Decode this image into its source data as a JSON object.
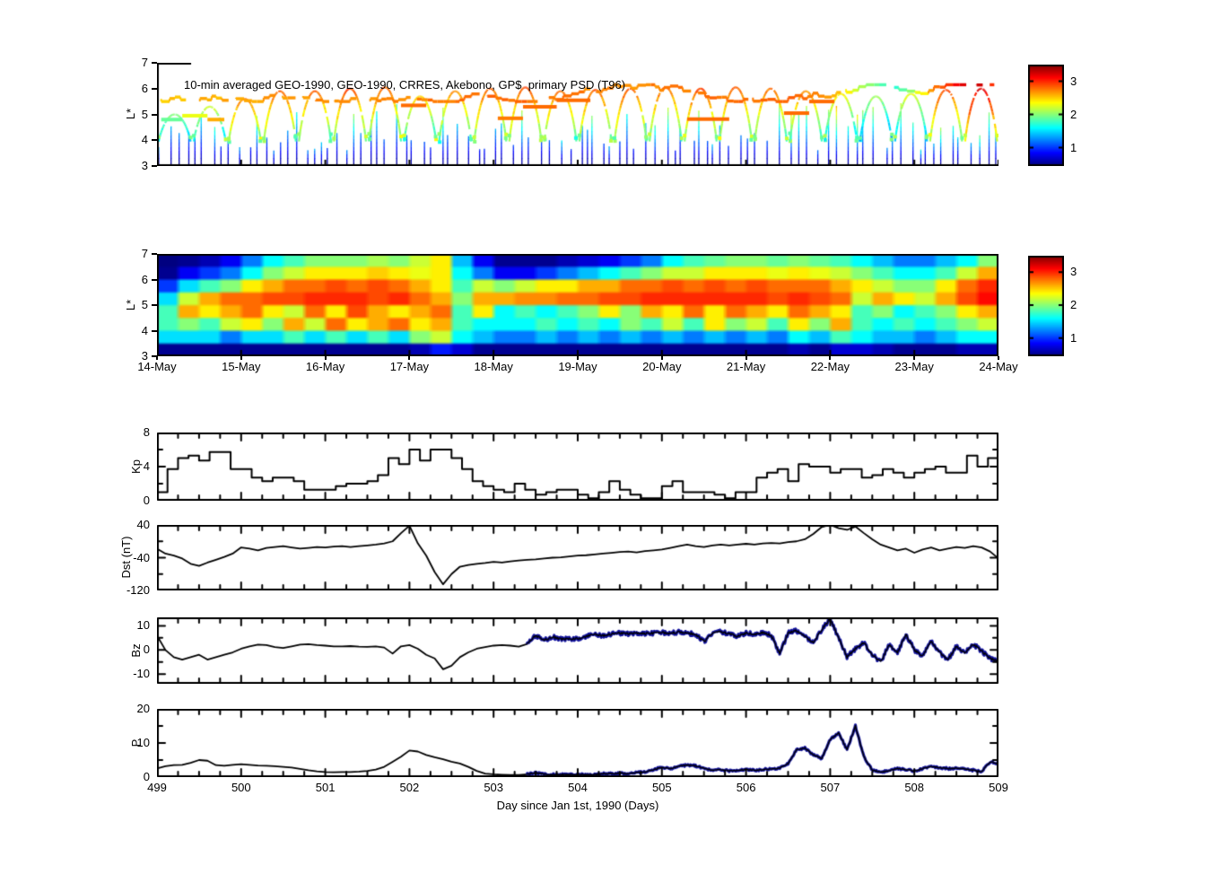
{
  "figure": {
    "background": "#ffffff"
  },
  "colors": {
    "line": "#000000",
    "overlay_blue": "#1414A0",
    "axis": "#000000"
  },
  "colormap": {
    "name": "jet",
    "vmin": 0.45,
    "vmax": 3.5,
    "ticks": [
      1,
      2,
      3
    ]
  },
  "xaxis": {
    "label": "Day since Jan 1st, 1990 (Days)",
    "xlim": [
      499,
      509
    ],
    "ticks": [
      499,
      500,
      501,
      502,
      503,
      504,
      505,
      506,
      507,
      508,
      509
    ],
    "date_ticks": [
      "14-May",
      "15-May",
      "16-May",
      "17-May",
      "18-May",
      "19-May",
      "20-May",
      "21-May",
      "22-May",
      "23-May",
      "24-May"
    ]
  },
  "chart_data": {
    "psd_scatter": {
      "type": "scatter-spectrogram",
      "title": "10-min averaged GEO-1990, GEO-1990, CRRES, Akebono, GP$  primary PSD (T96)",
      "ylabel": "L*",
      "ylim": [
        3,
        7
      ],
      "yticks": [
        3,
        4,
        5,
        6,
        7
      ],
      "seed": 1337,
      "orbits": {
        "first_apogee": 499.21,
        "period": 0.4167,
        "half_width": 0.19,
        "l_bottom": 3.95,
        "apogee_L": [
          5.0,
          5.3,
          5.6,
          5.9,
          5.9,
          6.0,
          6.05,
          5.7,
          5.9,
          6.0,
          6.05,
          5.9,
          5.95,
          6.0,
          6.05,
          6.0,
          6.05,
          6.0,
          5.9,
          5.8,
          5.7,
          5.8,
          5.95,
          6.0
        ],
        "apogee_value": [
          2.0,
          2.2,
          2.75,
          2.85,
          2.8,
          2.9,
          2.85,
          2.5,
          2.7,
          2.85,
          2.9,
          2.8,
          2.85,
          2.9,
          2.85,
          2.9,
          2.85,
          2.8,
          2.7,
          2.4,
          2.1,
          2.3,
          2.9,
          3.2
        ]
      },
      "geo": {
        "l_range": [
          5.5,
          6.15
        ],
        "value_profile": [
          [
            499.0,
            2.5
          ],
          [
            499.8,
            2.6
          ],
          [
            501.0,
            2.7
          ],
          [
            502.3,
            2.75
          ],
          [
            503.2,
            2.8
          ],
          [
            504.5,
            2.7
          ],
          [
            505.5,
            2.78
          ],
          [
            506.6,
            2.82
          ],
          [
            507.1,
            2.5
          ],
          [
            507.45,
            2.0
          ],
          [
            507.75,
            1.7
          ],
          [
            508.05,
            2.4
          ],
          [
            508.3,
            2.85
          ],
          [
            508.55,
            3.25
          ],
          [
            508.75,
            3.3
          ],
          [
            508.95,
            2.8
          ]
        ]
      },
      "bars": [
        [
          499.05,
          499.3,
          4.8,
          1.9
        ],
        [
          499.3,
          499.6,
          4.95,
          2.3
        ],
        [
          499.6,
          499.8,
          4.8,
          2.6
        ],
        [
          501.9,
          502.2,
          5.35,
          2.8
        ],
        [
          503.05,
          503.35,
          4.85,
          2.75
        ],
        [
          503.35,
          503.75,
          5.3,
          2.8
        ],
        [
          503.75,
          504.15,
          5.55,
          2.8
        ],
        [
          505.3,
          505.8,
          4.82,
          2.8
        ],
        [
          506.45,
          506.75,
          5.05,
          2.8
        ],
        [
          506.75,
          507.05,
          5.5,
          2.8
        ]
      ],
      "spikes": {
        "t_start": 499.02,
        "t_end": 508.97,
        "gap_min": 0.05,
        "gap_rand": 0.12,
        "l_top_min": 3.6,
        "l_top_rand": 1.9
      }
    },
    "psd_map": {
      "type": "heatmap",
      "ylabel": "L*",
      "ylim": [
        3,
        7
      ],
      "yticks": [
        3,
        4,
        5,
        6,
        7
      ],
      "grid": {
        "cols": 40,
        "rows": 8,
        "l_edges": [
          3,
          7
        ],
        "columns": [
          [
            0.5,
            1.5,
            1.8,
            1.8,
            1.5,
            1.0,
            0.5,
            0.45
          ],
          [
            0.5,
            1.5,
            2.0,
            2.6,
            2.2,
            1.5,
            0.8,
            0.5
          ],
          [
            0.5,
            1.5,
            1.8,
            2.4,
            2.6,
            1.8,
            1.0,
            0.6
          ],
          [
            0.5,
            1.2,
            2.2,
            2.6,
            2.8,
            2.0,
            1.2,
            0.8
          ],
          [
            0.5,
            1.5,
            2.4,
            2.8,
            2.8,
            2.4,
            1.6,
            1.2
          ],
          [
            0.5,
            1.5,
            2.0,
            2.4,
            2.9,
            2.6,
            2.0,
            1.6
          ],
          [
            0.5,
            1.8,
            2.6,
            2.2,
            2.9,
            2.8,
            2.2,
            1.8
          ],
          [
            0.5,
            1.5,
            2.2,
            2.8,
            3.0,
            2.8,
            2.4,
            2.0
          ],
          [
            0.5,
            1.8,
            2.8,
            2.4,
            3.0,
            2.9,
            2.4,
            2.0
          ],
          [
            0.5,
            1.5,
            2.4,
            2.9,
            3.0,
            2.8,
            2.4,
            2.0
          ],
          [
            0.5,
            1.8,
            2.6,
            2.6,
            2.9,
            2.9,
            2.5,
            2.1
          ],
          [
            0.5,
            1.5,
            2.8,
            2.4,
            3.0,
            2.8,
            2.4,
            2.0
          ],
          [
            0.6,
            2.0,
            2.4,
            2.6,
            2.8,
            2.6,
            2.3,
            2.2
          ],
          [
            0.9,
            2.2,
            2.6,
            2.8,
            2.6,
            2.4,
            2.4,
            2.4
          ],
          [
            0.7,
            1.6,
            1.8,
            1.8,
            2.0,
            1.8,
            1.6,
            1.4
          ],
          [
            0.5,
            1.4,
            1.6,
            2.4,
            2.6,
            2.2,
            1.2,
            0.8
          ],
          [
            0.5,
            1.2,
            1.6,
            1.6,
            2.6,
            2.0,
            0.8,
            0.5
          ],
          [
            0.5,
            1.2,
            1.6,
            1.8,
            2.7,
            2.2,
            0.8,
            0.5
          ],
          [
            0.5,
            1.4,
            1.8,
            1.6,
            2.7,
            2.4,
            1.0,
            0.5
          ],
          [
            0.5,
            1.2,
            1.6,
            1.8,
            2.8,
            2.4,
            1.2,
            0.6
          ],
          [
            0.5,
            1.4,
            1.8,
            2.0,
            2.8,
            2.6,
            1.4,
            0.7
          ],
          [
            0.5,
            1.2,
            1.6,
            2.4,
            2.9,
            2.6,
            1.6,
            0.8
          ],
          [
            0.5,
            1.4,
            2.0,
            2.0,
            2.9,
            2.8,
            1.8,
            1.0
          ],
          [
            0.5,
            1.2,
            1.8,
            2.6,
            3.0,
            2.8,
            2.0,
            1.2
          ],
          [
            0.5,
            1.4,
            2.2,
            2.4,
            3.0,
            2.9,
            2.2,
            1.6
          ],
          [
            0.5,
            1.2,
            1.8,
            2.8,
            3.0,
            2.8,
            2.2,
            1.8
          ],
          [
            0.5,
            1.4,
            2.4,
            2.4,
            3.0,
            2.9,
            2.4,
            1.9
          ],
          [
            0.5,
            1.2,
            2.0,
            2.8,
            3.0,
            2.8,
            2.4,
            2.0
          ],
          [
            0.5,
            1.4,
            2.2,
            2.6,
            3.0,
            2.9,
            2.4,
            2.0
          ],
          [
            0.5,
            1.2,
            1.8,
            2.4,
            2.9,
            2.8,
            2.3,
            1.9
          ],
          [
            0.6,
            1.6,
            2.4,
            2.8,
            3.0,
            2.8,
            2.4,
            2.0
          ],
          [
            0.5,
            1.4,
            2.0,
            2.6,
            2.9,
            2.8,
            2.3,
            1.9
          ],
          [
            0.7,
            1.8,
            2.6,
            2.4,
            2.8,
            2.6,
            2.2,
            1.8
          ],
          [
            0.7,
            1.6,
            1.8,
            1.8,
            2.2,
            2.4,
            2.0,
            1.6
          ],
          [
            0.6,
            1.4,
            1.6,
            2.0,
            2.6,
            2.2,
            1.8,
            1.4
          ],
          [
            0.5,
            1.4,
            1.8,
            1.6,
            2.4,
            2.0,
            1.6,
            1.2
          ],
          [
            0.5,
            1.2,
            1.6,
            1.8,
            2.2,
            2.0,
            1.6,
            1.2
          ],
          [
            0.5,
            1.4,
            1.8,
            2.0,
            2.6,
            2.4,
            1.8,
            1.4
          ],
          [
            0.6,
            1.6,
            2.0,
            2.4,
            2.9,
            2.8,
            2.2,
            1.6
          ],
          [
            0.6,
            1.6,
            2.2,
            2.6,
            3.1,
            3.0,
            2.6,
            2.0
          ]
        ]
      }
    },
    "kp": {
      "type": "step",
      "ylabel": "Kp",
      "ylim": [
        0,
        8
      ],
      "yticks": [
        0,
        4,
        8
      ],
      "yticks_minor": [
        2,
        6
      ],
      "x0": 499,
      "dx": 0.125,
      "values": [
        1.0,
        3.7,
        5.0,
        5.3,
        4.7,
        5.7,
        5.7,
        3.7,
        3.7,
        2.7,
        2.3,
        2.7,
        2.7,
        2.3,
        1.3,
        1.3,
        1.3,
        1.7,
        2.0,
        2.0,
        2.3,
        3.0,
        5.0,
        4.3,
        6.0,
        4.7,
        6.0,
        6.0,
        5.0,
        3.7,
        2.3,
        1.7,
        1.3,
        1.0,
        2.0,
        1.3,
        0.7,
        1.0,
        1.3,
        1.3,
        0.7,
        0.3,
        1.0,
        2.3,
        1.3,
        0.7,
        0.3,
        0.3,
        1.7,
        2.3,
        1.0,
        1.0,
        1.0,
        0.7,
        0.3,
        1.0,
        1.0,
        2.7,
        3.3,
        3.7,
        2.3,
        4.3,
        4.0,
        4.0,
        3.3,
        3.7,
        3.7,
        2.7,
        3.0,
        3.7,
        3.3,
        2.7,
        3.3,
        3.7,
        4.0,
        3.3,
        3.3,
        5.3,
        4.0,
        5.0
      ]
    },
    "dst": {
      "type": "line",
      "ylabel": "Dst (nT)",
      "ylim": [
        -120,
        40
      ],
      "yticks": [
        -120,
        -40,
        40
      ],
      "yticks_minor": [
        -80,
        0
      ],
      "x0": 499,
      "dx": 0.1,
      "values": [
        -18,
        -30,
        -35,
        -42,
        -55,
        -60,
        -52,
        -45,
        -38,
        -30,
        -15,
        -18,
        -22,
        -16,
        -14,
        -12,
        -15,
        -18,
        -16,
        -14,
        -15,
        -13,
        -12,
        -14,
        -12,
        -10,
        -8,
        -5,
        0,
        20,
        38,
        -5,
        -35,
        -75,
        -105,
        -80,
        -62,
        -58,
        -55,
        -53,
        -50,
        -52,
        -49,
        -47,
        -45,
        -44,
        -42,
        -40,
        -39,
        -37,
        -35,
        -34,
        -32,
        -30,
        -28,
        -26,
        -25,
        -27,
        -24,
        -22,
        -20,
        -16,
        -12,
        -8,
        -12,
        -14,
        -10,
        -8,
        -10,
        -8,
        -6,
        -8,
        -5,
        -4,
        -5,
        -2,
        0,
        5,
        18,
        35,
        40,
        32,
        28,
        36,
        20,
        5,
        -8,
        -15,
        -22,
        -18,
        -28,
        -20,
        -15,
        -22,
        -18,
        -14,
        -16,
        -12,
        -15,
        -25,
        -42
      ]
    },
    "bz": {
      "type": "line",
      "ylabel": "Bz",
      "ylim": [
        -14,
        13.5
      ],
      "yticks": [
        -10,
        0,
        10
      ],
      "yticks_minor": [
        -5,
        5
      ],
      "x0": 499,
      "dx": 0.1,
      "blue_start": 503.4,
      "noise_amp": 0.9,
      "values": [
        6,
        0,
        -3,
        -4,
        -3,
        -2,
        -4,
        -3,
        -2,
        -1,
        0.5,
        1.5,
        2.2,
        2,
        1.2,
        0.8,
        1.5,
        2.2,
        2.4,
        2,
        1.8,
        1.5,
        1.5,
        1.6,
        1.4,
        1.3,
        1.5,
        1,
        -1.5,
        1.5,
        2,
        0.5,
        -2,
        -3.5,
        -8,
        -6.5,
        -3,
        -1,
        0.5,
        1.2,
        1.8,
        2,
        1.8,
        1.4,
        2.5,
        6,
        4,
        5.5,
        4.5,
        4.5,
        4.8,
        5.5,
        6.5,
        6,
        6.5,
        7,
        6.8,
        7.2,
        6.8,
        7,
        7.2,
        6.8,
        7.5,
        7,
        6.5,
        3.5,
        7,
        7.5,
        6.8,
        5.5,
        7,
        6.5,
        7.2,
        6,
        -1.5,
        7,
        8,
        5.5,
        3,
        8.5,
        13,
        5,
        -3,
        0.5,
        3,
        -2,
        -5,
        2,
        -1,
        6.5,
        0,
        -2.5,
        3.5,
        -1,
        -4,
        1.5,
        -1.5,
        2.5,
        -0.5,
        -3.5,
        -5
      ]
    },
    "p": {
      "type": "line",
      "ylabel": "P",
      "ylim": [
        0,
        20
      ],
      "yticks": [
        0,
        10,
        20
      ],
      "yticks_minor": [
        5,
        15
      ],
      "x0": 499,
      "dx": 0.1,
      "blue_start": 503.4,
      "noise_amp": 0.3,
      "values": [
        2.5,
        3.2,
        3.5,
        3.6,
        4.2,
        5,
        4.8,
        3.5,
        3.3,
        3.6,
        3.8,
        3.6,
        3.4,
        3.3,
        3.2,
        3,
        2.8,
        2.4,
        2,
        1.7,
        1.5,
        1.4,
        1.5,
        1.5,
        1.6,
        1.8,
        2.2,
        3,
        4.5,
        6,
        7.8,
        7.5,
        6.5,
        5.8,
        5.2,
        4.5,
        4,
        3,
        1.8,
        1,
        0.8,
        0.7,
        0.6,
        0.6,
        0.8,
        1.3,
        0.8,
        0.7,
        0.8,
        0.7,
        0.8,
        0.7,
        0.8,
        1,
        1,
        1.2,
        1,
        1.3,
        1.5,
        2.2,
        2.8,
        2.5,
        3.2,
        3.5,
        3.3,
        2.6,
        2,
        2.2,
        1.8,
        2,
        2.2,
        2,
        2.2,
        2.4,
        2.6,
        4,
        8,
        8.5,
        6.5,
        5.5,
        11,
        13,
        8,
        15,
        6,
        2,
        1.5,
        1.8,
        2.5,
        2.2,
        1.8,
        2.5,
        3,
        2.8,
        2.5,
        2.6,
        2.4,
        2,
        1.6,
        4.5,
        4
      ]
    }
  }
}
